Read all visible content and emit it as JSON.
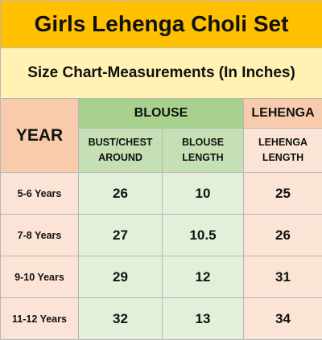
{
  "title": "Girls Lehenga Choli Set",
  "subtitle": "Size Chart-Measurements (In Inches)",
  "headers": {
    "year": "YEAR",
    "blouse": "BLOUSE",
    "lehenga": "LEHENGA",
    "bust_line1": "BUST/CHEST",
    "bust_line2": "AROUND",
    "blouse_len_line1": "BLOUSE",
    "blouse_len_line2": "LENGTH",
    "lehenga_len_line1": "LEHENGA",
    "lehenga_len_line2": "LENGTH"
  },
  "rows": [
    {
      "year": "5-6 Years",
      "bust": "26",
      "blouse_length": "10",
      "lehenga_length": "25"
    },
    {
      "year": "7-8 Years",
      "bust": "27",
      "blouse_length": "10.5",
      "lehenga_length": "26"
    },
    {
      "year": "9-10 Years",
      "bust": "29",
      "blouse_length": "12",
      "lehenga_length": "31"
    },
    {
      "year": "11-12 Years",
      "bust": "32",
      "blouse_length": "13",
      "lehenga_length": "34"
    }
  ],
  "colors": {
    "title_bg": "#ffc000",
    "subtitle_bg": "#fff2b3",
    "blouse_header": "#a9d18e",
    "lehenga_header": "#f8cbad"
  }
}
